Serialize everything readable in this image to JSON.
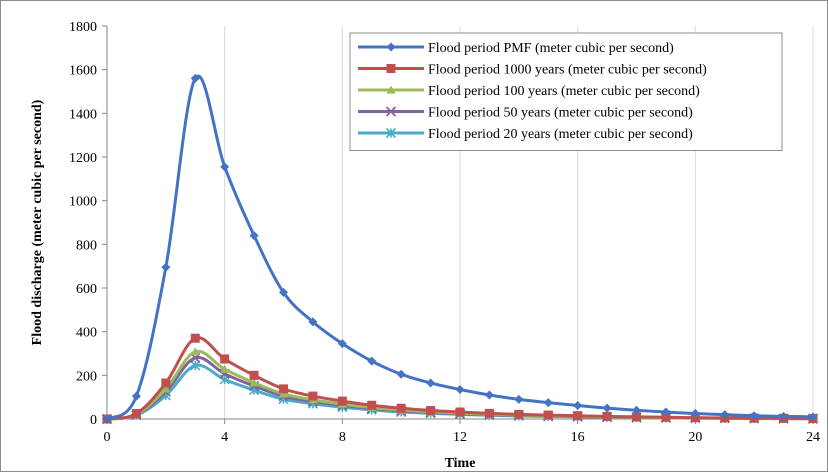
{
  "chart_data": {
    "type": "line",
    "xlabel": "Time",
    "ylabel": "Flood discharge (meter cubic per second)",
    "xlim": [
      0,
      24
    ],
    "ylim": [
      0,
      1800
    ],
    "xticks": [
      0,
      4,
      8,
      12,
      16,
      20,
      24
    ],
    "yticks": [
      0,
      200,
      400,
      600,
      800,
      1000,
      1200,
      1400,
      1600,
      1800
    ],
    "grid": "vertical",
    "legend_position": "top-right",
    "x": [
      0,
      1,
      2,
      3,
      4,
      5,
      6,
      7,
      8,
      9,
      10,
      11,
      12,
      13,
      14,
      15,
      16,
      17,
      18,
      19,
      20,
      21,
      22,
      23,
      24
    ],
    "series": [
      {
        "name": "Flood period PMF (meter cubic per second)",
        "color": "#4472c4",
        "marker": "diamond",
        "values": [
          0,
          105,
          695,
          1560,
          1155,
          840,
          580,
          445,
          345,
          265,
          205,
          165,
          135,
          110,
          90,
          75,
          62,
          50,
          40,
          32,
          25,
          20,
          15,
          12,
          10
        ]
      },
      {
        "name": "Flood period 1000 years (meter cubic per second)",
        "color": "#c0504d",
        "marker": "square",
        "values": [
          0,
          25,
          165,
          370,
          275,
          200,
          138,
          105,
          82,
          63,
          49,
          39,
          32,
          26,
          21,
          18,
          15,
          12,
          10,
          8,
          6,
          5,
          4,
          3,
          2
        ]
      },
      {
        "name": "Flood period 100 years (meter cubic per second)",
        "color": "#9bbb59",
        "marker": "triangle",
        "values": [
          0,
          21,
          138,
          308,
          228,
          166,
          115,
          88,
          68,
          52,
          41,
          33,
          27,
          22,
          18,
          15,
          12,
          10,
          8,
          6,
          5,
          4,
          3,
          2,
          2
        ]
      },
      {
        "name": "Flood period 50 years (meter cubic per second)",
        "color": "#8064a2",
        "marker": "x",
        "values": [
          0,
          19,
          125,
          280,
          207,
          151,
          104,
          80,
          62,
          48,
          37,
          30,
          24,
          20,
          16,
          13,
          11,
          9,
          7,
          6,
          5,
          4,
          3,
          2,
          2
        ]
      },
      {
        "name": "Flood period 20 years (meter cubic per second)",
        "color": "#4bacc6",
        "marker": "asterisk",
        "values": [
          0,
          17,
          108,
          245,
          181,
          132,
          91,
          70,
          54,
          42,
          32,
          26,
          21,
          17,
          14,
          12,
          10,
          8,
          6,
          5,
          4,
          3,
          2,
          2,
          1
        ]
      }
    ]
  }
}
